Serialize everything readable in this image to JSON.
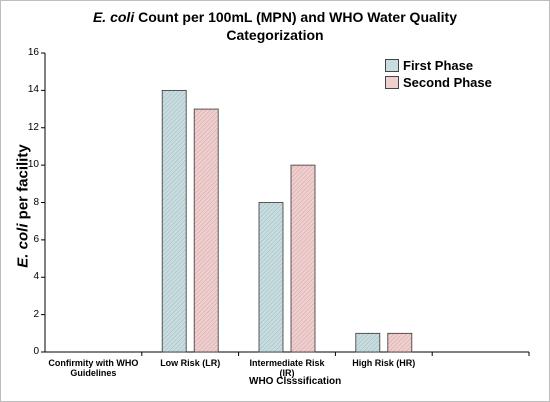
{
  "chart_data": {
    "type": "bar",
    "title_italic": "E. coli",
    "title_rest": " Count per 100mL  (MPN) and WHO Water Quality",
    "title_line2": "Categorization",
    "ylabel_italic": "E. coli",
    "ylabel_rest": " per facility",
    "xlabel": "WHO  Clsssification",
    "categories": [
      "Confirmity with WHO Guidelines",
      "Low Risk (LR)",
      "Intermediate Risk (IR)",
      "High Risk (HR)"
    ],
    "series": [
      {
        "name": "First Phase",
        "values": [
          0,
          14,
          8,
          1
        ],
        "color": "#c8dde0"
      },
      {
        "name": "Second Phase",
        "values": [
          0,
          13,
          10,
          1
        ],
        "color": "#f0cfcf"
      }
    ],
    "ylim": [
      0,
      16
    ],
    "yticks": [
      "0",
      "2",
      "4",
      "6",
      "8",
      "10",
      "12",
      "14",
      "16"
    ],
    "grid": false,
    "legend_position": "top-right"
  }
}
